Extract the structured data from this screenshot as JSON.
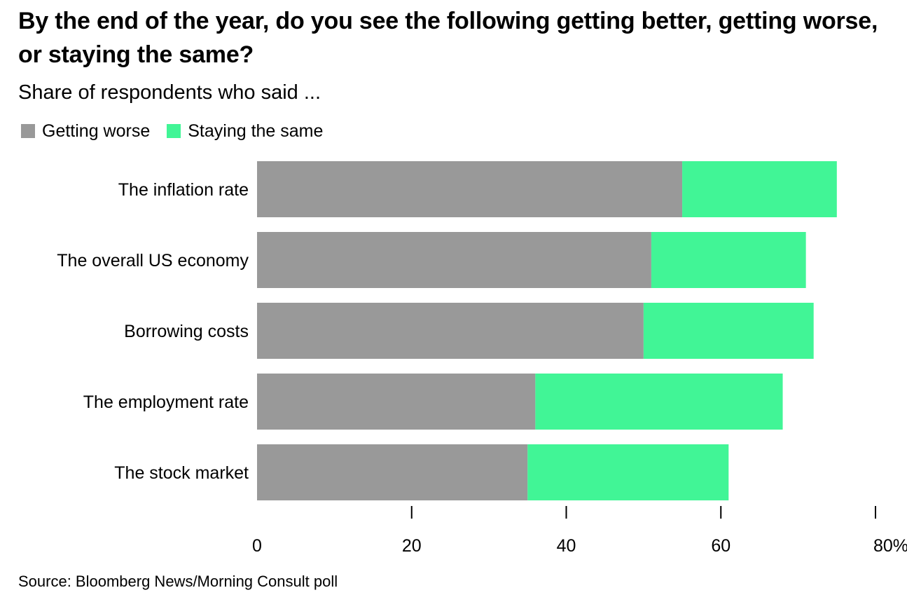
{
  "chart_data": {
    "type": "bar",
    "orientation": "horizontal",
    "stacked": true,
    "title": "By the end of the year, do you see the following getting better, getting worse, or staying the same?",
    "subtitle": "Share of respondents who said ...",
    "categories": [
      "The inflation rate",
      "The overall US economy",
      "Borrowing costs",
      "The employment rate",
      "The stock market"
    ],
    "series": [
      {
        "name": "Getting worse",
        "color": "#999999",
        "values": [
          55,
          51,
          50,
          36,
          35
        ]
      },
      {
        "name": "Staying the same",
        "color": "#41f596",
        "values": [
          20,
          20,
          22,
          32,
          26
        ]
      }
    ],
    "xlim": [
      0,
      80
    ],
    "xticks": [
      0,
      20,
      40,
      60,
      80
    ],
    "xtick_labels": [
      "0",
      "20",
      "40",
      "60",
      "80%"
    ],
    "legend_position": "top-left",
    "grid": false,
    "source": "Source: Bloomberg News/Morning Consult poll"
  }
}
